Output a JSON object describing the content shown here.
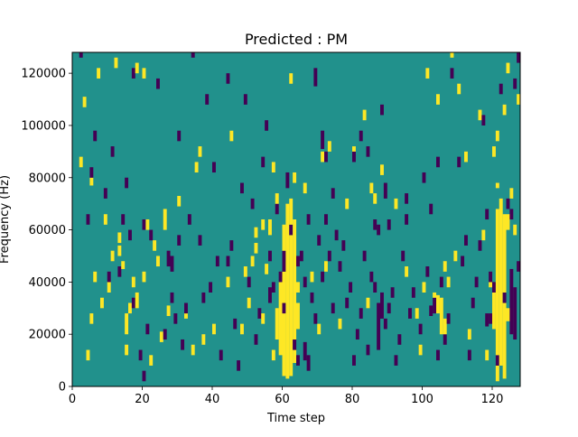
{
  "chart_data": {
    "type": "heatmap",
    "title": "Predicted : PM",
    "xlabel": "Time step",
    "ylabel": "Frequency (Hz)",
    "xlim": [
      0,
      128
    ],
    "ylim": [
      0,
      128000
    ],
    "x_ticks": [
      0,
      20,
      40,
      60,
      80,
      100,
      120
    ],
    "y_ticks": [
      0,
      20000,
      40000,
      60000,
      80000,
      100000,
      120000
    ],
    "x_tick_labels": [
      "0",
      "20",
      "40",
      "60",
      "80",
      "100",
      "120"
    ],
    "y_tick_labels": [
      "0",
      "20000",
      "40000",
      "60000",
      "80000",
      "100000",
      "120000"
    ],
    "n_time_steps": 128,
    "n_frequency_bins": 128,
    "frequency_bin_hz": 1000,
    "colormap": "viridis",
    "values_legend": {
      "-1": "low (purple)",
      "0": "background (teal)",
      "1": "high (yellow)"
    },
    "colors": {
      "-1": "#440154",
      "0": "#21918c",
      "1": "#fde725"
    },
    "background_value": 0,
    "high_runs": [
      [
        60,
        4000,
        62000
      ],
      [
        61,
        3000,
        70000
      ],
      [
        62,
        4000,
        72000
      ],
      [
        63,
        9000,
        64000
      ],
      [
        59,
        12000,
        44000
      ],
      [
        58,
        18000,
        30000
      ],
      [
        64,
        22000,
        32000
      ],
      [
        57,
        10000,
        14000
      ],
      [
        56,
        58000,
        64000
      ],
      [
        58,
        70000,
        74000
      ],
      [
        121,
        2000,
        68000
      ],
      [
        122,
        8000,
        72000
      ],
      [
        123,
        3000,
        66000
      ],
      [
        120,
        22000,
        40000
      ],
      [
        124,
        25000,
        30000
      ],
      [
        124,
        60000,
        66000
      ],
      [
        121,
        76000,
        78000
      ],
      [
        104,
        28000,
        35000
      ],
      [
        105,
        20000,
        34000
      ],
      [
        106,
        17000,
        26000
      ],
      [
        103,
        32000,
        36000
      ],
      [
        107,
        38000,
        42000
      ],
      [
        15,
        20000,
        28000
      ],
      [
        15,
        12000,
        16000
      ],
      [
        14,
        45000,
        48000
      ],
      [
        18,
        30000,
        36000
      ],
      [
        23,
        52000,
        56000
      ],
      [
        26,
        60000,
        64000
      ]
    ],
    "high_cells": [
      [
        5,
        24000
      ],
      [
        5,
        77000
      ],
      [
        6,
        40000
      ],
      [
        8,
        30000
      ],
      [
        9,
        62000
      ],
      [
        10,
        36000
      ],
      [
        11,
        48000
      ],
      [
        13,
        55000
      ],
      [
        13,
        50000
      ],
      [
        16,
        28000
      ],
      [
        17,
        38000
      ],
      [
        20,
        40000
      ],
      [
        20,
        118000
      ],
      [
        21,
        60000
      ],
      [
        22,
        8000
      ],
      [
        24,
        46000
      ],
      [
        25,
        17000
      ],
      [
        26,
        64000
      ],
      [
        27,
        27000
      ],
      [
        30,
        69000
      ],
      [
        32,
        26000
      ],
      [
        34,
        12000
      ],
      [
        35,
        82000
      ],
      [
        36,
        88000
      ],
      [
        37,
        16000
      ],
      [
        40,
        20000
      ],
      [
        44,
        38000
      ],
      [
        48,
        20000
      ],
      [
        49,
        42000
      ],
      [
        50,
        30000
      ],
      [
        51,
        46000
      ],
      [
        52,
        51000
      ],
      [
        52,
        57000
      ],
      [
        54,
        24000
      ],
      [
        54,
        60000
      ],
      [
        55,
        43000
      ],
      [
        57,
        82000
      ],
      [
        62,
        116000
      ],
      [
        66,
        74000
      ],
      [
        68,
        40000
      ],
      [
        70,
        20000
      ],
      [
        71,
        86000
      ],
      [
        72,
        44000
      ],
      [
        73,
        90000
      ],
      [
        76,
        22000
      ],
      [
        78,
        68000
      ],
      [
        80,
        88000
      ],
      [
        83,
        102000
      ],
      [
        84,
        30000
      ],
      [
        85,
        74000
      ],
      [
        86,
        70000
      ],
      [
        88,
        81000
      ],
      [
        92,
        68000
      ],
      [
        95,
        42000
      ],
      [
        98,
        26000
      ],
      [
        99,
        12000
      ],
      [
        100,
        36000
      ],
      [
        101,
        118000
      ],
      [
        104,
        108000
      ],
      [
        106,
        44000
      ],
      [
        108,
        126000
      ],
      [
        109,
        48000
      ],
      [
        110,
        112000
      ],
      [
        112,
        86000
      ],
      [
        113,
        18000
      ],
      [
        116,
        102000
      ],
      [
        117,
        56000
      ],
      [
        118,
        10000
      ],
      [
        119,
        38000
      ],
      [
        120,
        88000
      ],
      [
        121,
        94000
      ],
      [
        122,
        48000
      ],
      [
        123,
        104000
      ],
      [
        124,
        120000
      ],
      [
        125,
        72000
      ],
      [
        126,
        28000
      ],
      [
        126,
        58000
      ],
      [
        127,
        108000
      ],
      [
        3,
        107000
      ],
      [
        7,
        118000
      ],
      [
        12,
        122000
      ],
      [
        18,
        120000
      ],
      [
        2,
        84000
      ],
      [
        4,
        10000
      ],
      [
        45,
        94000
      ],
      [
        63,
        78000
      ],
      [
        64,
        36000
      ]
    ],
    "low_runs": [
      [
        125,
        20000,
        45000
      ],
      [
        126,
        18000,
        38000
      ],
      [
        119,
        24000,
        28000
      ],
      [
        118,
        23000,
        28000
      ],
      [
        27,
        46000,
        52000
      ],
      [
        28,
        44000,
        50000
      ],
      [
        60,
        44000,
        52000
      ],
      [
        61,
        76000,
        82000
      ],
      [
        66,
        10000,
        17000
      ],
      [
        67,
        6000,
        12000
      ],
      [
        87,
        14000,
        32000
      ],
      [
        88,
        26000,
        36000
      ],
      [
        69,
        115000,
        122000
      ],
      [
        71,
        91000,
        98000
      ],
      [
        72,
        86000,
        90000
      ],
      [
        89,
        72000,
        78000
      ],
      [
        102,
        27000,
        31000
      ],
      [
        103,
        28000,
        32000
      ],
      [
        56,
        32000,
        38000
      ],
      [
        57,
        36000,
        40000
      ]
    ],
    "low_cells": [
      [
        2,
        126000
      ],
      [
        4,
        62000
      ],
      [
        5,
        80000
      ],
      [
        6,
        94000
      ],
      [
        9,
        72000
      ],
      [
        10,
        40000
      ],
      [
        11,
        88000
      ],
      [
        13,
        42000
      ],
      [
        14,
        62000
      ],
      [
        15,
        76000
      ],
      [
        16,
        56000
      ],
      [
        17,
        30000
      ],
      [
        17,
        118000
      ],
      [
        19,
        10000
      ],
      [
        20,
        60000
      ],
      [
        21,
        20000
      ],
      [
        22,
        56000
      ],
      [
        24,
        114000
      ],
      [
        26,
        18000
      ],
      [
        28,
        32000
      ],
      [
        29,
        24000
      ],
      [
        30,
        94000
      ],
      [
        31,
        14000
      ],
      [
        32,
        28000
      ],
      [
        33,
        62000
      ],
      [
        34,
        126000
      ],
      [
        36,
        54000
      ],
      [
        37,
        32000
      ],
      [
        38,
        108000
      ],
      [
        39,
        36000
      ],
      [
        40,
        82000
      ],
      [
        41,
        46000
      ],
      [
        42,
        10000
      ],
      [
        44,
        116000
      ],
      [
        45,
        52000
      ],
      [
        46,
        22000
      ],
      [
        47,
        6000
      ],
      [
        48,
        74000
      ],
      [
        49,
        108000
      ],
      [
        50,
        38000
      ],
      [
        51,
        68000
      ],
      [
        52,
        16000
      ],
      [
        53,
        26000
      ],
      [
        55,
        98000
      ],
      [
        56,
        48000
      ],
      [
        58,
        66000
      ],
      [
        59,
        40000
      ],
      [
        60,
        28000
      ],
      [
        62,
        58000
      ],
      [
        63,
        14000
      ],
      [
        64,
        8000
      ],
      [
        65,
        48000
      ],
      [
        66,
        38000
      ],
      [
        67,
        62000
      ],
      [
        68,
        32000
      ],
      [
        69,
        24000
      ],
      [
        70,
        54000
      ],
      [
        71,
        40000
      ],
      [
        72,
        62000
      ],
      [
        73,
        48000
      ],
      [
        74,
        28000
      ],
      [
        75,
        56000
      ],
      [
        76,
        44000
      ],
      [
        77,
        52000
      ],
      [
        78,
        30000
      ],
      [
        79,
        36000
      ],
      [
        80,
        8000
      ],
      [
        81,
        18000
      ],
      [
        82,
        26000
      ],
      [
        83,
        48000
      ],
      [
        84,
        12000
      ],
      [
        85,
        40000
      ],
      [
        86,
        36000
      ],
      [
        87,
        58000
      ],
      [
        88,
        104000
      ],
      [
        89,
        22000
      ],
      [
        90,
        28000
      ],
      [
        91,
        34000
      ],
      [
        92,
        8000
      ],
      [
        93,
        16000
      ],
      [
        94,
        48000
      ],
      [
        95,
        62000
      ],
      [
        96,
        26000
      ],
      [
        97,
        34000
      ],
      [
        99,
        20000
      ],
      [
        101,
        42000
      ],
      [
        103,
        30000
      ],
      [
        104,
        10000
      ],
      [
        105,
        38000
      ],
      [
        106,
        16000
      ],
      [
        107,
        24000
      ],
      [
        108,
        118000
      ],
      [
        110,
        84000
      ],
      [
        111,
        46000
      ],
      [
        112,
        54000
      ],
      [
        113,
        10000
      ],
      [
        114,
        30000
      ],
      [
        115,
        38000
      ],
      [
        116,
        52000
      ],
      [
        117,
        100000
      ],
      [
        118,
        64000
      ],
      [
        119,
        40000
      ],
      [
        120,
        36000
      ],
      [
        121,
        8000
      ],
      [
        122,
        112000
      ],
      [
        123,
        32000
      ],
      [
        124,
        68000
      ],
      [
        125,
        64000
      ],
      [
        126,
        114000
      ],
      [
        127,
        44000
      ],
      [
        127,
        124000
      ],
      [
        100,
        78000
      ],
      [
        102,
        66000
      ],
      [
        104,
        84000
      ],
      [
        80,
        86000
      ],
      [
        82,
        94000
      ],
      [
        84,
        88000
      ],
      [
        86,
        60000
      ],
      [
        90,
        60000
      ],
      [
        95,
        70000
      ],
      [
        20,
        2000
      ],
      [
        30,
        54000
      ],
      [
        44,
        46000
      ],
      [
        54,
        84000
      ],
      [
        64,
        46000
      ],
      [
        74,
        72000
      ]
    ]
  }
}
